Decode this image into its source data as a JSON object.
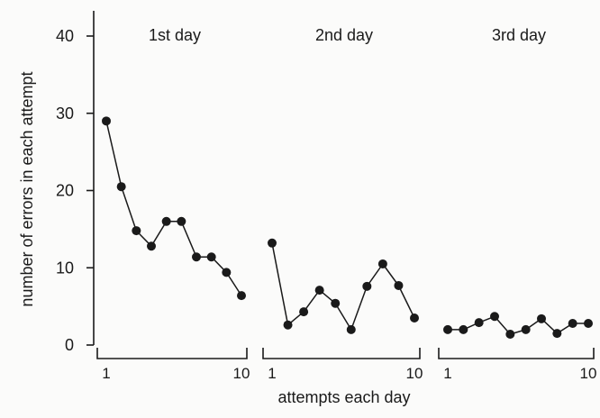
{
  "chart_data": {
    "type": "line",
    "title": "",
    "xlabel": "attempts each day",
    "ylabel": "number of errors in each attempt",
    "ylim": [
      0,
      40
    ],
    "yticks": [
      0,
      10,
      20,
      30,
      40
    ],
    "xlim": [
      1,
      10
    ],
    "xtick_labels": [
      "1",
      "10"
    ],
    "grid": false,
    "legend": "none",
    "panels": [
      {
        "title": "1st day",
        "x": [
          1,
          2,
          3,
          4,
          5,
          6,
          7,
          8,
          9,
          10
        ],
        "y": [
          29,
          20.5,
          14.8,
          12.8,
          16,
          16,
          11.4,
          11.4,
          9.4,
          6.4
        ]
      },
      {
        "title": "2nd day",
        "x": [
          1,
          2,
          3,
          4,
          5,
          6,
          7,
          8,
          9,
          10
        ],
        "y": [
          13.2,
          2.6,
          4.3,
          7.1,
          5.4,
          2,
          7.6,
          10.5,
          7.7,
          3.5
        ]
      },
      {
        "title": "3rd day",
        "x": [
          1,
          2,
          3,
          4,
          5,
          6,
          7,
          8,
          9,
          10
        ],
        "y": [
          2,
          2,
          2.9,
          3.7,
          1.4,
          2,
          3.4,
          1.5,
          2.8,
          2.8
        ]
      }
    ],
    "colors": {
      "ink": "#1a1a1a",
      "background": "#fbfbfa"
    }
  }
}
